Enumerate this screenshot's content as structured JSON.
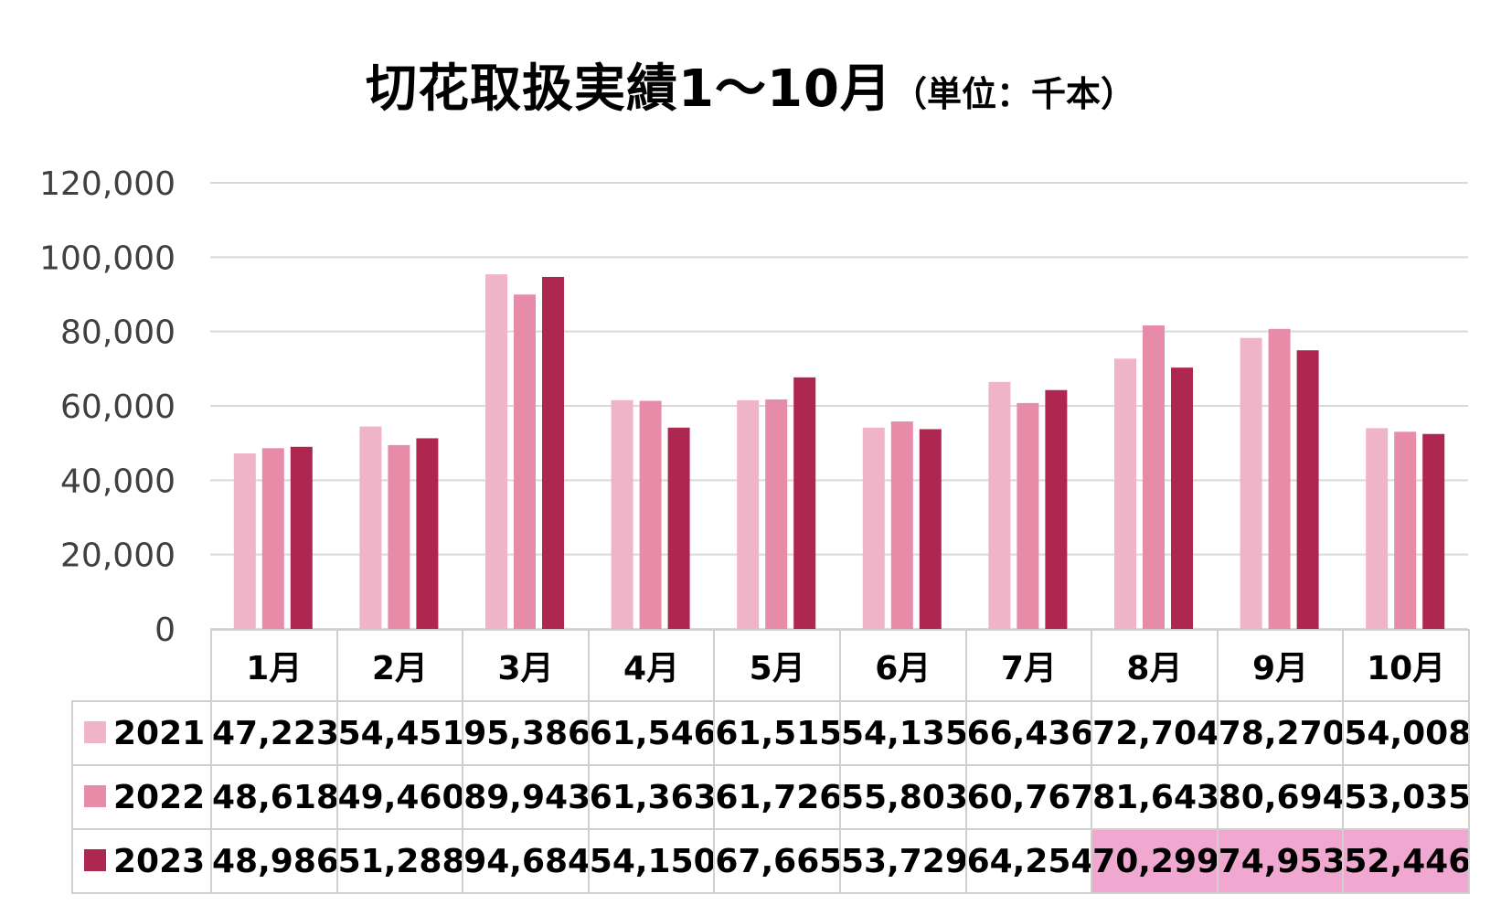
{
  "title": "切花取扱実績1～10月",
  "title_unit": "（単位：千本）",
  "chart_data": {
    "type": "bar",
    "title": "切花取扱実績1～10月",
    "subtitle": "（単位：千本）",
    "categories": [
      "1月",
      "2月",
      "3月",
      "4月",
      "5月",
      "6月",
      "7月",
      "8月",
      "9月",
      "10月"
    ],
    "y_ticks": [
      "0",
      "20,000",
      "40,000",
      "60,000",
      "80,000",
      "100,000",
      "120,000"
    ],
    "ylim": [
      0,
      120000
    ],
    "grid": true,
    "legend": "table",
    "series": [
      {
        "name": "2021",
        "color": "#f0b4c8",
        "values": [
          47223,
          54451,
          95386,
          61546,
          61515,
          54135,
          66436,
          72704,
          78270,
          54008
        ],
        "labels": [
          "47,223",
          "54,451",
          "95,386",
          "61,546",
          "61,515",
          "54,135",
          "66,436",
          "72,704",
          "78,270",
          "54,008"
        ]
      },
      {
        "name": "2022",
        "color": "#e68ca8",
        "values": [
          48618,
          49460,
          89943,
          61363,
          61726,
          55803,
          60767,
          81643,
          80694,
          53035
        ],
        "labels": [
          "48,618",
          "49,460",
          "89,943",
          "61,363",
          "61,726",
          "55,803",
          "60,767",
          "81,643",
          "80,694",
          "53,035"
        ]
      },
      {
        "name": "2023",
        "color": "#ae2750",
        "values": [
          48986,
          51288,
          94684,
          54150,
          67665,
          53729,
          64254,
          70299,
          74953,
          52446
        ],
        "labels": [
          "48,986",
          "51,288",
          "94,684",
          "54,150",
          "67,665",
          "53,729",
          "64,254",
          "70,299",
          "74,953",
          "52,446"
        ]
      }
    ],
    "highlight": {
      "series": "2023",
      "categories": [
        "8月",
        "9月",
        "10月"
      ],
      "color": "#f0a8d0"
    }
  }
}
